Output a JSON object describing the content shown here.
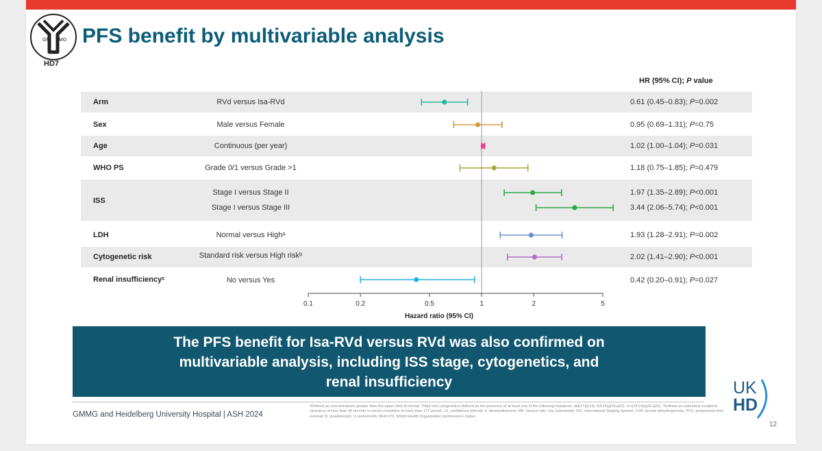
{
  "slide": {
    "title": "PFS benefit by multivariable analysis",
    "logo_text": "HD7",
    "logo_left": "GM",
    "logo_right": "MG",
    "hr_header_pre": "HR (95% CI); ",
    "hr_header_p": "P",
    "hr_header_post": " value",
    "message_lines": [
      "The PFS benefit for Isa-RVd versus RVd was also confirmed on",
      "multivariable analysis, including ISS stage, cytogenetics, and",
      "renal insufficiency"
    ],
    "footer": "GMMG and Heidelberg University Hospital | ASH 2024",
    "footnote": "ᵃDefined as concentrations greater than the upper limit of normal. ᵇHigh-risk cytogenetics defined as the presence of at least one of the following mutations: del(17)(p13), t(4;14)(p16;q32), or t(14;16)(q32;q23). ᶜDefined as estimated creatinine clearance of less than 40 mL/min or serum creatinine of more than 177 μmol/L. CI, confidence interval; d, dexamethasone; HR, hazard ratio; Isa, isatuximab; ISS, International Staging System; LDH, lactate dehydrogenase; PFS, progression-free survival; R, lenalidomide; V, bortezomib; WHO PS, World Health Organization performance status.",
    "ukhd_top": "UK",
    "ukhd_bottom": "HD",
    "page_number": "12"
  },
  "rows": [
    {
      "group": "Arm",
      "comparison": "RVd versus Isa-RVd",
      "hr_text": "0.61 (0.45–0.83); ",
      "p_text": "=0.002"
    },
    {
      "group": "Sex",
      "comparison": "Male versus Female",
      "hr_text": "0.95 (0.69–1.31); ",
      "p_text": "=0.75"
    },
    {
      "group": "Age",
      "comparison": "Continuous (per year)",
      "hr_text": "1.02 (1.00–1.04); ",
      "p_text": "=0.031"
    },
    {
      "group": "WHO PS",
      "comparison": "Grade 0/1 versus Grade >1",
      "hr_text": "1.18 (0.75–1.85); ",
      "p_text": "=0.479"
    },
    {
      "group": "ISS",
      "comparison": "Stage I versus Stage II",
      "hr_text": "1.97 (1.35–2.89); ",
      "p_text": "<0.001"
    },
    {
      "group": "",
      "comparison": "Stage I versus Stage III",
      "hr_text": "3.44 (2.06–5.74); ",
      "p_text": "<0.001"
    },
    {
      "group": "LDH",
      "comparison": "Normal versus Highᵃ",
      "hr_text": "1.93 (1.28–2.91); ",
      "p_text": "=0.002"
    },
    {
      "group": "Cytogenetic risk",
      "comparison": "Standard risk versus High riskᵇ",
      "hr_text": "2.02 (1.41–2.90); ",
      "p_text": "<0.001"
    },
    {
      "group": "Renal insufficiencyᶜ",
      "comparison": "No versus Yes",
      "hr_text": "0.42 (0.20–0.91); ",
      "p_text": "=0.027"
    }
  ],
  "chart_data": {
    "type": "forest",
    "xlabel": "Hazard ratio (95% CI)",
    "xscale": "log",
    "xlim": [
      0.1,
      5
    ],
    "xticks": [
      0.1,
      0.2,
      0.5,
      1,
      2,
      5
    ],
    "xtick_labels": [
      "0.1",
      "0.2",
      "0.5",
      "1",
      "2",
      "5"
    ],
    "reference_line": 1,
    "series": [
      {
        "label": "RVd versus Isa-RVd",
        "hr": 0.61,
        "lo": 0.45,
        "hi": 0.83,
        "color": "#2bb79a"
      },
      {
        "label": "Male versus Female",
        "hr": 0.95,
        "lo": 0.69,
        "hi": 1.31,
        "color": "#d39a3a"
      },
      {
        "label": "Continuous (per year)",
        "hr": 1.02,
        "lo": 1.0,
        "hi": 1.04,
        "color": "#e8408a"
      },
      {
        "label": "Grade 0/1 versus Grade >1",
        "hr": 1.18,
        "lo": 0.75,
        "hi": 1.85,
        "color": "#a6a83a"
      },
      {
        "label": "Stage I versus Stage II",
        "hr": 1.97,
        "lo": 1.35,
        "hi": 2.89,
        "color": "#2ca84a"
      },
      {
        "label": "Stage I versus Stage III",
        "hr": 3.44,
        "lo": 2.06,
        "hi": 5.74,
        "color": "#2ca84a"
      },
      {
        "label": "Normal versus Highᵃ",
        "hr": 1.93,
        "lo": 1.28,
        "hi": 2.91,
        "color": "#6f8fd0"
      },
      {
        "label": "Standard risk versus High riskᵇ",
        "hr": 2.02,
        "lo": 1.41,
        "hi": 2.9,
        "color": "#b86fc6"
      },
      {
        "label": "No versus Yes",
        "hr": 0.42,
        "lo": 0.2,
        "hi": 0.91,
        "color": "#1fb1de"
      }
    ]
  }
}
